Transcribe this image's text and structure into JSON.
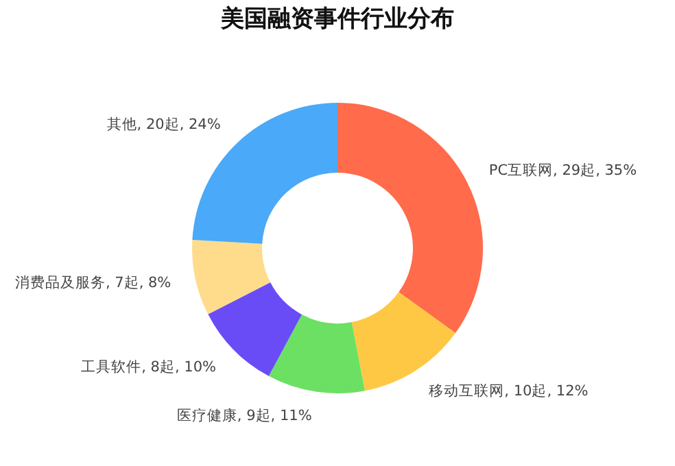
{
  "chart_data": {
    "type": "donut",
    "title": "美国融资事件行业分布",
    "categories": [
      "PC互联网",
      "移动互联网",
      "医疗健康",
      "工具软件",
      "消费品及服务",
      "其他"
    ],
    "values": [
      29,
      10,
      9,
      8,
      7,
      20
    ],
    "value_labels": [
      ", 29起, 35%",
      ", 10起, 12%",
      ", 9起, 11%",
      ", 8起, 10%",
      ", 7起, 8%",
      ", 20起, 24%"
    ],
    "colors": [
      "#ff6b4b",
      "#ffc844",
      "#6be063",
      "#6a4cf7",
      "#fedc8c",
      "#4aa9f8"
    ],
    "legend": false
  }
}
